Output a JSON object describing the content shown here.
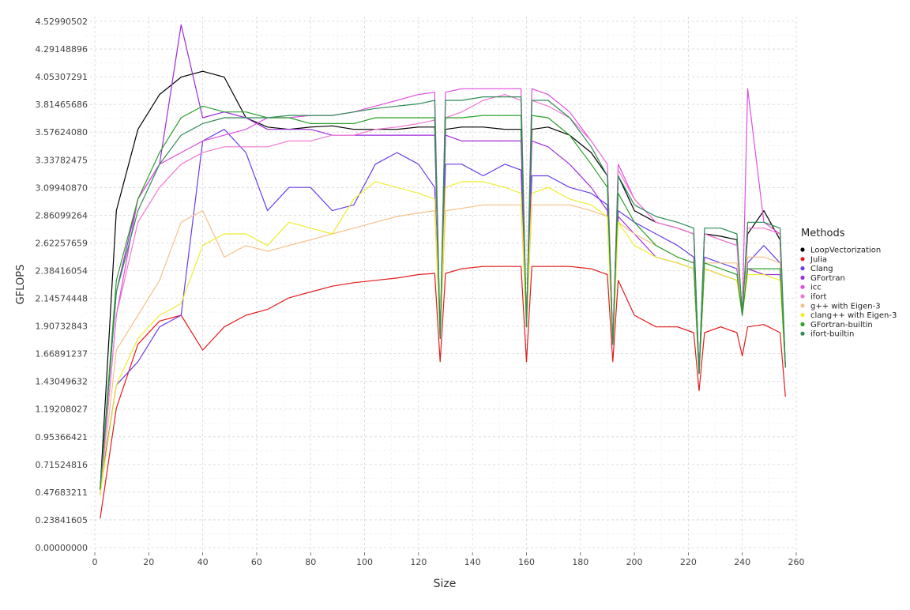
{
  "chart_data": {
    "type": "line",
    "title": "",
    "xlabel": "Size",
    "ylabel": "GFLOPS",
    "xlim": [
      0,
      260
    ],
    "ylim": [
      0,
      4.5299
    ],
    "x_ticks": [
      "0",
      "20",
      "40",
      "60",
      "80",
      "100",
      "120",
      "140",
      "160",
      "180",
      "200",
      "220",
      "240",
      "260"
    ],
    "y_ticks": [
      "0.00000000",
      "0.23841605",
      "0.47683211",
      "0.71524816",
      "0.95366421",
      "1.19208027",
      "1.43049632",
      "1.66891237",
      "1.90732843",
      "2.14574448",
      "2.38416054",
      "2.62257659",
      "2.86099264",
      "3.09940870",
      "3.33782475",
      "3.57624080",
      "3.81465686",
      "4.05307291",
      "4.29148896",
      "4.52990502"
    ],
    "grid": true,
    "legend": {
      "title": "Methods",
      "placement": "right"
    },
    "x": [
      2,
      8,
      16,
      24,
      32,
      40,
      48,
      56,
      64,
      72,
      80,
      88,
      96,
      104,
      112,
      120,
      126,
      128,
      130,
      136,
      144,
      152,
      158,
      160,
      162,
      168,
      176,
      184,
      190,
      192,
      194,
      200,
      208,
      216,
      222,
      224,
      226,
      232,
      238,
      240,
      242,
      248,
      254,
      256
    ],
    "series": [
      {
        "name": "LoopVectorization",
        "color": "#000000",
        "values": [
          0.5,
          2.9,
          3.6,
          3.9,
          4.05,
          4.1,
          4.05,
          3.7,
          3.62,
          3.6,
          3.62,
          3.63,
          3.6,
          3.6,
          3.6,
          3.62,
          3.62,
          1.8,
          3.6,
          3.62,
          3.62,
          3.6,
          3.6,
          1.9,
          3.6,
          3.62,
          3.55,
          3.4,
          3.2,
          1.75,
          3.2,
          2.9,
          2.8,
          2.75,
          2.7,
          1.5,
          2.7,
          2.68,
          2.65,
          2.0,
          2.7,
          2.9,
          2.65,
          1.55
        ]
      },
      {
        "name": "Julia",
        "color": "#e41a1c",
        "values": [
          0.25,
          1.2,
          1.75,
          1.95,
          2.0,
          1.7,
          1.9,
          2.0,
          2.05,
          2.15,
          2.2,
          2.25,
          2.28,
          2.3,
          2.32,
          2.35,
          2.36,
          1.6,
          2.36,
          2.4,
          2.42,
          2.42,
          2.42,
          1.6,
          2.42,
          2.42,
          2.42,
          2.4,
          2.35,
          1.6,
          2.3,
          2.0,
          1.9,
          1.9,
          1.85,
          1.35,
          1.85,
          1.9,
          1.85,
          1.65,
          1.9,
          1.92,
          1.85,
          1.3
        ]
      },
      {
        "name": "Clang",
        "color": "#6a3de8",
        "values": [
          0.5,
          1.4,
          1.6,
          1.9,
          2.0,
          3.5,
          3.6,
          3.4,
          2.9,
          3.1,
          3.1,
          2.9,
          2.95,
          3.3,
          3.4,
          3.3,
          3.1,
          1.8,
          3.3,
          3.3,
          3.2,
          3.3,
          3.25,
          1.9,
          3.2,
          3.2,
          3.1,
          3.05,
          2.95,
          1.75,
          2.9,
          2.8,
          2.7,
          2.6,
          2.5,
          1.5,
          2.5,
          2.45,
          2.4,
          2.0,
          2.45,
          2.6,
          2.45,
          1.55
        ]
      },
      {
        "name": "GFortran",
        "color": "#9d2bdc",
        "values": [
          0.5,
          2.2,
          3.0,
          3.3,
          4.5,
          3.7,
          3.75,
          3.7,
          3.6,
          3.6,
          3.6,
          3.55,
          3.55,
          3.55,
          3.55,
          3.55,
          3.55,
          1.8,
          3.55,
          3.5,
          3.5,
          3.5,
          3.5,
          1.9,
          3.5,
          3.45,
          3.3,
          3.1,
          2.9,
          1.75,
          2.85,
          2.7,
          2.5,
          2.45,
          2.4,
          1.5,
          2.4,
          2.35,
          2.3,
          2.0,
          2.4,
          2.35,
          2.35,
          1.55
        ]
      },
      {
        "name": "icc",
        "color": "#e04ee0",
        "values": [
          0.45,
          2.0,
          3.0,
          3.3,
          3.4,
          3.5,
          3.55,
          3.6,
          3.7,
          3.7,
          3.72,
          3.72,
          3.75,
          3.8,
          3.85,
          3.9,
          3.92,
          1.8,
          3.92,
          3.95,
          3.95,
          3.95,
          3.95,
          1.9,
          3.95,
          3.9,
          3.75,
          3.5,
          3.3,
          1.75,
          3.3,
          3.0,
          2.8,
          2.75,
          2.7,
          1.5,
          2.7,
          2.65,
          2.6,
          2.0,
          3.95,
          2.8,
          2.7,
          1.55
        ]
      },
      {
        "name": "ifort",
        "color": "#f07ad2",
        "values": [
          0.45,
          2.0,
          2.8,
          3.1,
          3.3,
          3.4,
          3.45,
          3.45,
          3.45,
          3.5,
          3.5,
          3.55,
          3.55,
          3.6,
          3.62,
          3.65,
          3.68,
          1.8,
          3.7,
          3.75,
          3.85,
          3.9,
          3.85,
          1.9,
          3.85,
          3.8,
          3.7,
          3.5,
          3.3,
          1.75,
          3.25,
          3.0,
          2.8,
          2.75,
          2.7,
          1.5,
          2.7,
          2.65,
          2.6,
          2.0,
          2.75,
          2.75,
          2.7,
          1.55
        ]
      },
      {
        "name": "g++ with Eigen-3",
        "color": "#f5c18a",
        "values": [
          0.45,
          1.7,
          2.0,
          2.3,
          2.8,
          2.9,
          2.5,
          2.6,
          2.55,
          2.6,
          2.65,
          2.7,
          2.75,
          2.8,
          2.85,
          2.88,
          2.9,
          1.8,
          2.9,
          2.92,
          2.95,
          2.95,
          2.95,
          1.9,
          2.95,
          2.95,
          2.95,
          2.9,
          2.85,
          1.75,
          2.8,
          2.7,
          2.6,
          2.5,
          2.45,
          1.5,
          2.45,
          2.45,
          2.45,
          2.0,
          2.5,
          2.5,
          2.45,
          1.55
        ]
      },
      {
        "name": "clang++ with Eigen-3",
        "color": "#eeee2e",
        "values": [
          0.45,
          1.4,
          1.8,
          2.0,
          2.1,
          2.6,
          2.7,
          2.7,
          2.6,
          2.8,
          2.75,
          2.7,
          3.0,
          3.15,
          3.1,
          3.05,
          3.0,
          1.8,
          3.1,
          3.15,
          3.15,
          3.1,
          3.05,
          1.9,
          3.05,
          3.1,
          3.0,
          2.95,
          2.85,
          1.75,
          2.8,
          2.6,
          2.5,
          2.45,
          2.4,
          1.5,
          2.4,
          2.35,
          2.3,
          2.0,
          2.35,
          2.35,
          2.3,
          1.55
        ]
      },
      {
        "name": "GFortran-builtin",
        "color": "#2ca02c",
        "values": [
          0.5,
          2.3,
          3.0,
          3.4,
          3.7,
          3.8,
          3.75,
          3.75,
          3.7,
          3.7,
          3.65,
          3.65,
          3.65,
          3.7,
          3.7,
          3.7,
          3.7,
          1.8,
          3.7,
          3.7,
          3.72,
          3.72,
          3.72,
          1.9,
          3.72,
          3.7,
          3.55,
          3.3,
          3.1,
          1.75,
          3.05,
          2.8,
          2.6,
          2.5,
          2.45,
          1.5,
          2.45,
          2.4,
          2.35,
          2.0,
          2.4,
          2.4,
          2.4,
          1.55
        ]
      },
      {
        "name": "ifort-builtin",
        "color": "#2e8b57",
        "values": [
          0.5,
          2.2,
          2.9,
          3.3,
          3.55,
          3.65,
          3.7,
          3.7,
          3.7,
          3.72,
          3.72,
          3.72,
          3.75,
          3.78,
          3.8,
          3.82,
          3.85,
          1.8,
          3.85,
          3.85,
          3.88,
          3.88,
          3.88,
          1.9,
          3.85,
          3.85,
          3.7,
          3.45,
          3.2,
          1.75,
          3.2,
          2.95,
          2.85,
          2.8,
          2.75,
          1.5,
          2.75,
          2.75,
          2.7,
          2.0,
          2.8,
          2.8,
          2.75,
          1.55
        ]
      }
    ]
  }
}
